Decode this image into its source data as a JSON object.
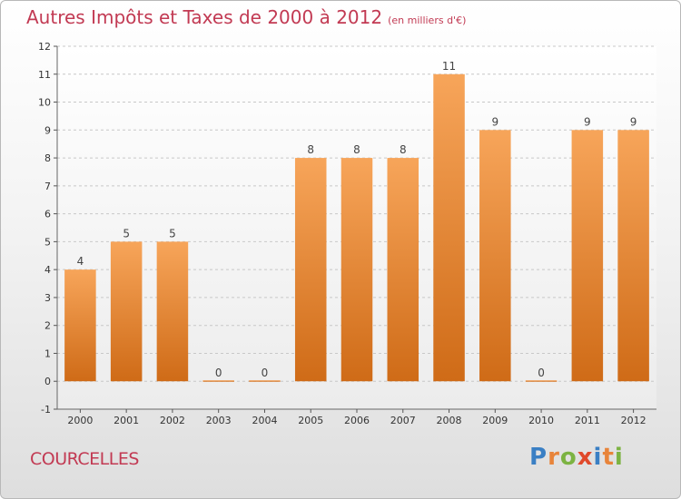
{
  "title": "Autres Impôts et Taxes de 2000 à 2012",
  "subtitle": "(en milliers d'€)",
  "commune": "COURCELLES",
  "logo": {
    "letters": [
      "P",
      "r",
      "o",
      "x",
      "i",
      "t",
      "i"
    ],
    "colors": [
      "#3a7fc4",
      "#e8843a",
      "#7cb342",
      "#e0492b",
      "#3a7fc4",
      "#e8843a",
      "#7cb342"
    ]
  },
  "chart_data": {
    "type": "bar",
    "title": "Autres Impôts et Taxes de 2000 à 2012",
    "subtitle": "(en milliers d'€)",
    "categories": [
      "2000",
      "2001",
      "2002",
      "2003",
      "2004",
      "2005",
      "2006",
      "2007",
      "2008",
      "2009",
      "2010",
      "2011",
      "2012"
    ],
    "values": [
      4,
      5,
      5,
      0,
      0,
      8,
      8,
      8,
      11,
      9,
      0,
      9,
      9
    ],
    "value_labels": [
      "4",
      "5",
      "5",
      "0",
      "0",
      "8",
      "8",
      "8",
      "11",
      "9",
      "0",
      "9",
      "9"
    ],
    "yticks": [
      "-1",
      "0",
      "1",
      "2",
      "3",
      "4",
      "5",
      "6",
      "7",
      "8",
      "9",
      "10",
      "11",
      "12"
    ],
    "ylim": [
      -1,
      12
    ],
    "grid": true,
    "bar_color": "#f08b2a"
  }
}
